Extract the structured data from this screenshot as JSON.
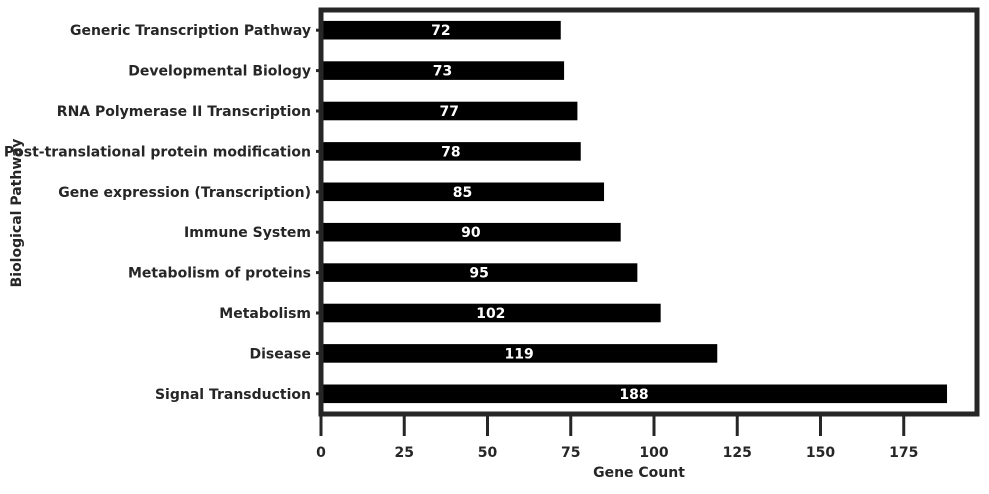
{
  "chart_data": {
    "type": "bar",
    "orientation": "horizontal",
    "categories": [
      "Generic Transcription Pathway",
      "Developmental Biology",
      "RNA Polymerase II Transcription",
      "Post-translational protein modification",
      "Gene expression (Transcription)",
      "Immune System",
      "Metabolism of proteins",
      "Metabolism",
      "Disease",
      "Signal Transduction"
    ],
    "values": [
      72,
      73,
      77,
      78,
      85,
      90,
      95,
      102,
      119,
      188
    ],
    "title": "",
    "xlabel": "Gene Count",
    "ylabel": "Biological Pathway",
    "xlim": [
      0,
      197
    ],
    "xticks": [
      0,
      25,
      50,
      75,
      100,
      125,
      150,
      175
    ],
    "grid": false,
    "legend": "none",
    "bar_color": "#000000",
    "label_color": "#ffffff",
    "text_color": "#262626",
    "frame_color": "#262626"
  }
}
